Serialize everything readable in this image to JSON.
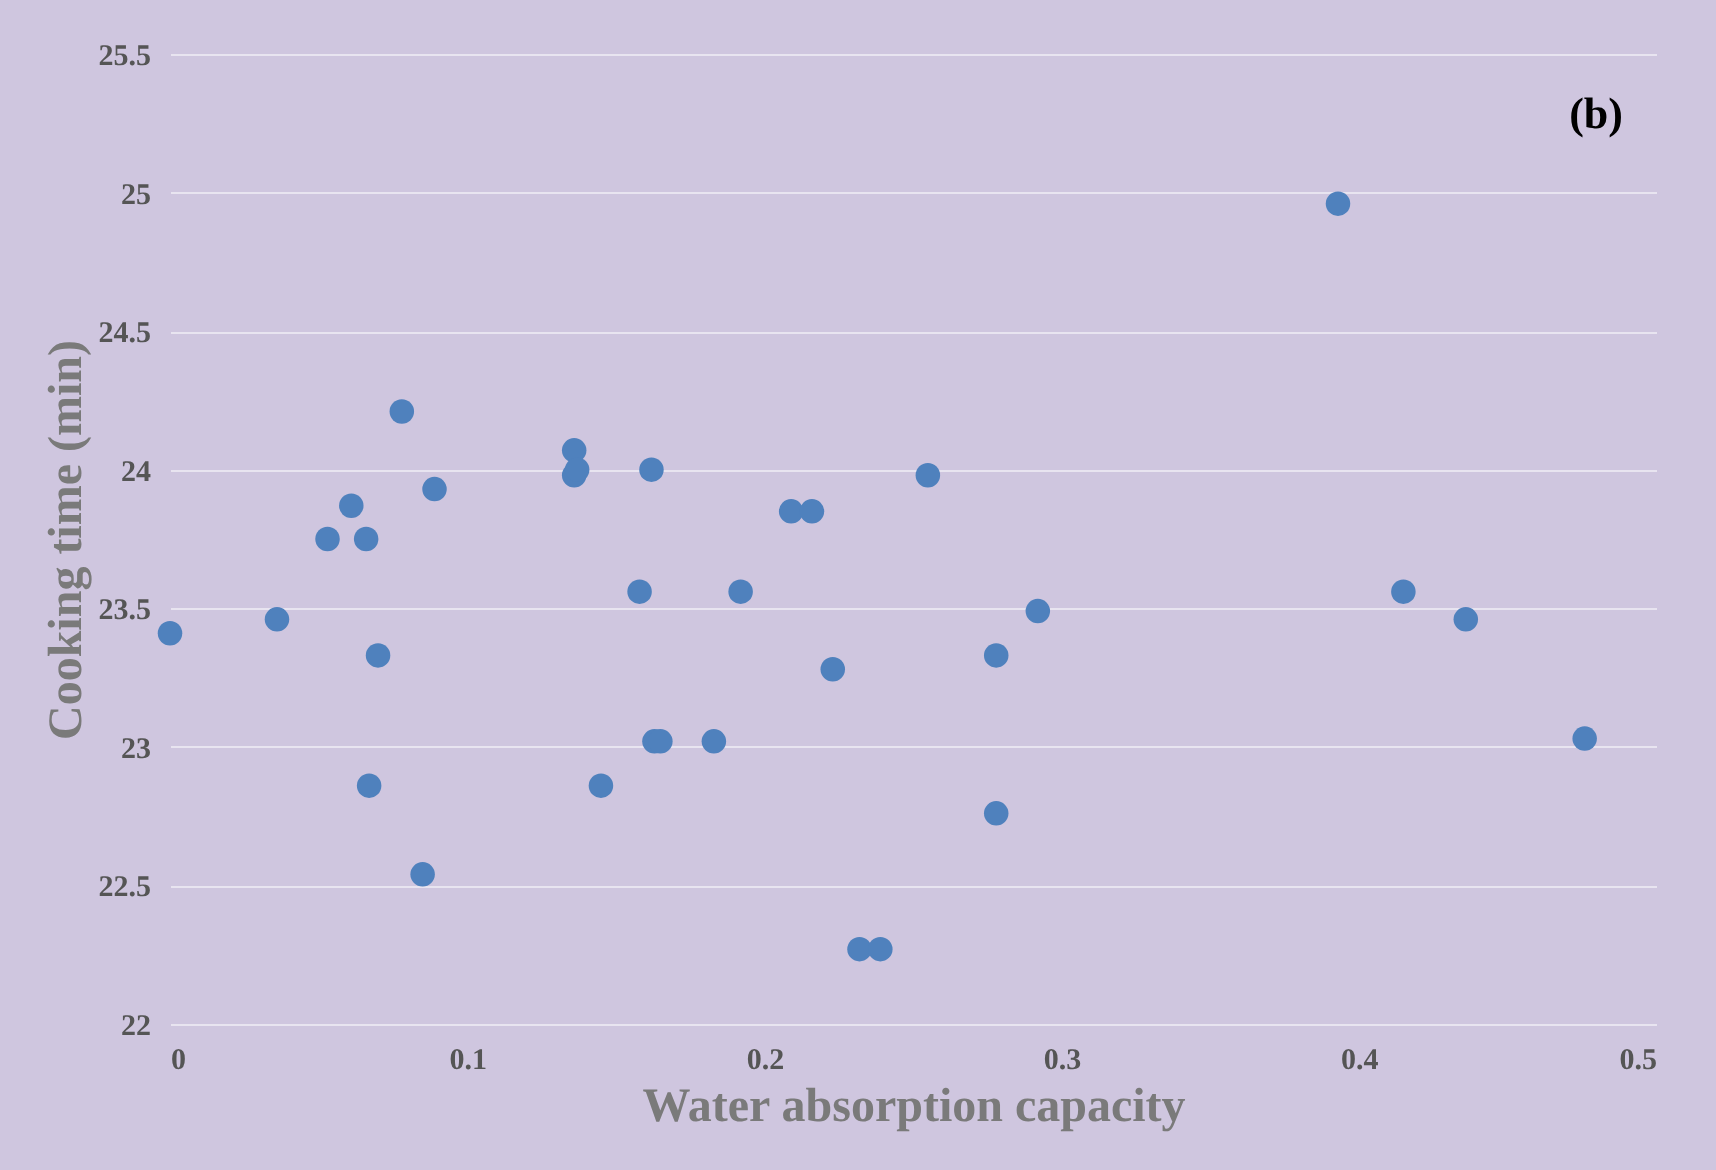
{
  "chart_data": {
    "type": "scatter",
    "xlabel": "Water absorption capacity",
    "ylabel": "Cooking time (min)",
    "annotations": [
      "(b)"
    ],
    "x": [
      0,
      0.036,
      0.053,
      0.061,
      0.066,
      0.078,
      0.07,
      0.067,
      0.085,
      0.089,
      0.136,
      0.136,
      0.137,
      0.162,
      0.158,
      0.163,
      0.165,
      0.145,
      0.183,
      0.192,
      0.209,
      0.216,
      0.223,
      0.232,
      0.239,
      0.255,
      0.278,
      0.278,
      0.292,
      0.393,
      0.415,
      0.436,
      0.476
    ],
    "series": [
      {
        "color": "#4f81bd",
        "values": [
          23.41,
          23.46,
          23.75,
          23.87,
          23.75,
          24.21,
          23.33,
          22.86,
          22.54,
          23.93,
          24.07,
          23.98,
          24.0,
          24.0,
          23.56,
          23.02,
          23.02,
          22.86,
          23.02,
          23.56,
          23.85,
          23.85,
          23.28,
          22.27,
          22.27,
          23.98,
          23.33,
          22.76,
          23.49,
          24.96,
          23.56,
          23.46,
          23.03
        ]
      }
    ],
    "xlim": [
      0,
      0.5
    ],
    "xticks": [
      0,
      0.1,
      0.2,
      0.3,
      0.4,
      0.5
    ],
    "ylim": [
      22,
      25.5
    ],
    "yticks": [
      22,
      22.5,
      23,
      23.5,
      24,
      24.5,
      25,
      25.5
    ],
    "grid": "y",
    "marker": "circle"
  }
}
